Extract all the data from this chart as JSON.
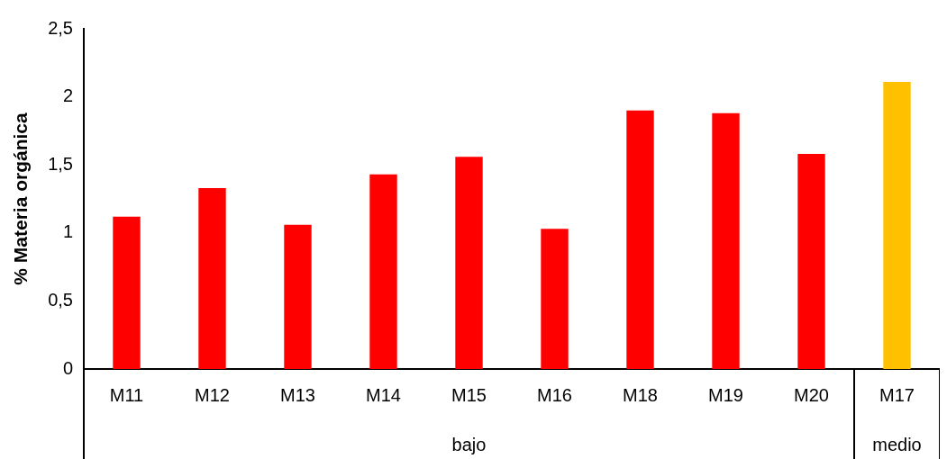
{
  "chart_data": {
    "type": "bar",
    "ylabel": "% Materia orgánica",
    "categories": [
      "M11",
      "M12",
      "M13",
      "M14",
      "M15",
      "M16",
      "M18",
      "M19",
      "M20",
      "M17"
    ],
    "values": [
      1.12,
      1.33,
      1.06,
      1.43,
      1.56,
      1.03,
      1.9,
      1.88,
      1.58,
      2.11
    ],
    "colors": [
      "#ff0000",
      "#ff0000",
      "#ff0000",
      "#ff0000",
      "#ff0000",
      "#ff0000",
      "#ff0000",
      "#ff0000",
      "#ff0000",
      "#ffc000"
    ],
    "ylim": [
      0,
      2.5
    ],
    "yticks": [
      0,
      {
        "value": 0.5,
        "label": "0,5"
      },
      1,
      {
        "value": 1.5,
        "label": "1,5"
      },
      2,
      {
        "value": 2.5,
        "label": "2,5"
      }
    ],
    "annotations": [
      "bajo",
      "medio"
    ],
    "grid": false,
    "legend": false
  }
}
